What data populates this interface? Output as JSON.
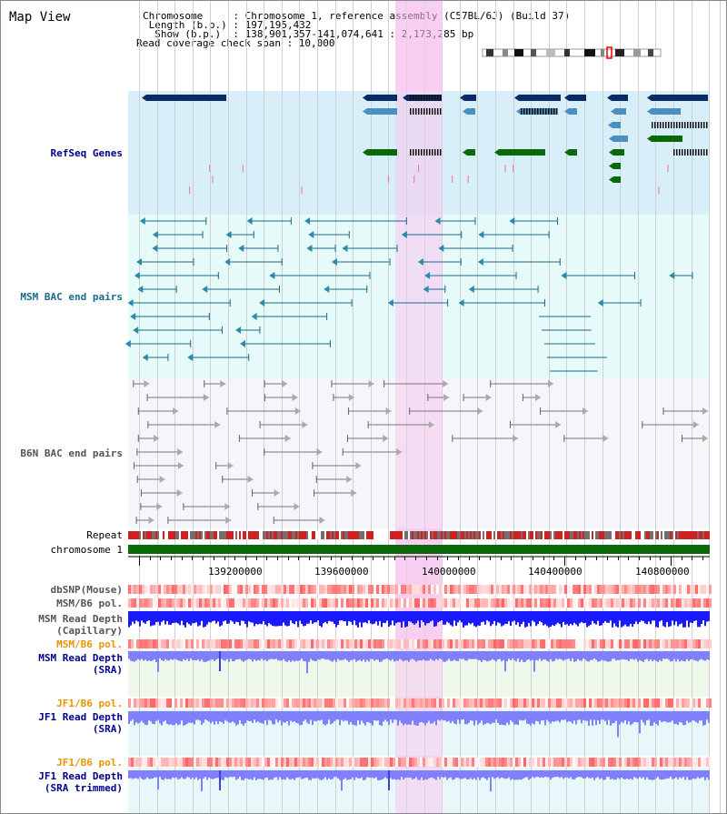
{
  "map_title": "Map View",
  "header": {
    "line1": "Chromosome     : Chromosome 1, reference assembly (C57BL/6J) (Build 37)",
    "line2": " Length (b.p.) : 197,195,432",
    "line3": "  Show (b.p.)  : 138,901,357-141,074,641 : 2,173,285 bp",
    "line4": "Read coverage check span : 10,000"
  },
  "tracks": {
    "refseq": "RefSeq Genes",
    "msm_bac": "MSM BAC end pairs",
    "b6n_bac": "B6N BAC end pairs",
    "repeat": "Repeat",
    "chromosome": "chromosome 1",
    "dbsnp": "dbSNP(Mouse)",
    "msm_b6_pol": "MSM/B6 pol.",
    "msm_depth_cap_1": "MSM Read Depth",
    "msm_depth_cap_2": "(Capillary)",
    "msm_b6_pol_2": "MSM/B6 pol.",
    "msm_depth_sra_1": "MSM Read Depth",
    "msm_depth_sra_2": "(SRA)",
    "jf1_b6_pol": "JF1/B6 pol.",
    "jf1_depth_sra_1": "JF1 Read Depth",
    "jf1_depth_sra_2": "(SRA)",
    "jf1_b6_pol_2": "JF1/B6 pol.",
    "jf1_depth_trim_1": "JF1 Read Depth",
    "jf1_depth_trim_2": "(SRA trimmed)"
  },
  "axis": {
    "ticks": [
      "139200000",
      "139600000",
      "140000000",
      "140400000",
      "140800000"
    ]
  },
  "colors": {
    "refseq_bg": "#d8eef8",
    "msm_bg": "#e6fafa",
    "b6n_bg": "#f4f6fa",
    "highlight": "#f8c8ee",
    "gene_navy": "#0a2a66",
    "gene_blue": "#4a8fbf",
    "gene_green": "#0a6a0a",
    "msm_line": "#1a6a8a",
    "b6n_line": "#777777",
    "chrom": "#0a6a0a",
    "repeat_red": "#d02020",
    "repeat_gray": "#707070",
    "depth_blue": "#1a1aff",
    "depth_light": "#8080ff",
    "pol_red": "#ff4040",
    "label_navy": "#00008b",
    "label_orange": "#e69500",
    "label_teal": "#1a6a8a"
  }
}
